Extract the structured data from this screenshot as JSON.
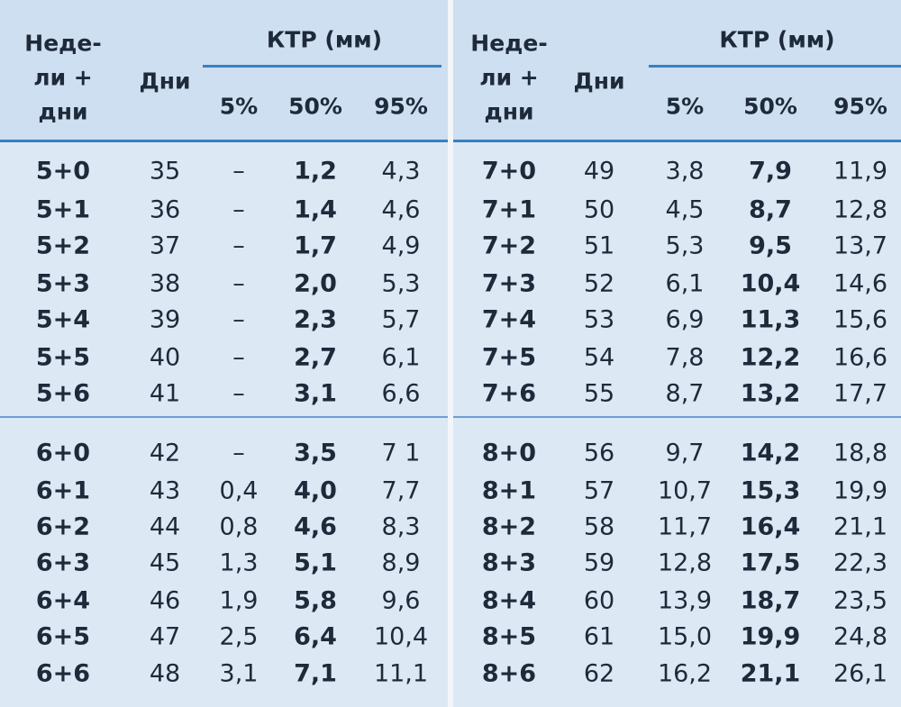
{
  "halves": [
    {
      "header": {
        "weeks": [
          "Неде-",
          "ли +",
          "дни"
        ],
        "days": "Дни",
        "ktr": "КТР (мм)",
        "percentiles": [
          "5%",
          "50%",
          "95%"
        ]
      },
      "groups": [
        [
          [
            "5+0",
            "35",
            "–",
            "1,2",
            "4,3"
          ],
          [
            "5+1",
            "36",
            "–",
            "1,4",
            "4,6"
          ],
          [
            "5+2",
            "37",
            "–",
            "1,7",
            "4,9"
          ],
          [
            "5+3",
            "38",
            "–",
            "2,0",
            "5,3"
          ],
          [
            "5+4",
            "39",
            "–",
            "2,3",
            "5,7"
          ],
          [
            "5+5",
            "40",
            "–",
            "2,7",
            "6,1"
          ],
          [
            "5+6",
            "41",
            "–",
            "3,1",
            "6,6"
          ]
        ],
        [
          [
            "6+0",
            "42",
            "–",
            "3,5",
            "7 1"
          ],
          [
            "6+1",
            "43",
            "0,4",
            "4,0",
            "7,7"
          ],
          [
            "6+2",
            "44",
            "0,8",
            "4,6",
            "8,3"
          ],
          [
            "6+3",
            "45",
            "1,3",
            "5,1",
            "8,9"
          ],
          [
            "6+4",
            "46",
            "1,9",
            "5,8",
            "9,6"
          ],
          [
            "6+5",
            "47",
            "2,5",
            "6,4",
            "10,4"
          ],
          [
            "6+6",
            "48",
            "3,1",
            "7,1",
            "11,1"
          ]
        ]
      ]
    },
    {
      "header": {
        "weeks": [
          "Неде-",
          "ли +",
          "дни"
        ],
        "days": "Дни",
        "ktr": "КТР (мм)",
        "percentiles": [
          "5%",
          "50%",
          "95%"
        ]
      },
      "groups": [
        [
          [
            "7+0",
            "49",
            "3,8",
            "7,9",
            "11,9"
          ],
          [
            "7+1",
            "50",
            "4,5",
            "8,7",
            "12,8"
          ],
          [
            "7+2",
            "51",
            "5,3",
            "9,5",
            "13,7"
          ],
          [
            "7+3",
            "52",
            "6,1",
            "10,4",
            "14,6"
          ],
          [
            "7+4",
            "53",
            "6,9",
            "11,3",
            "15,6"
          ],
          [
            "7+5",
            "54",
            "7,8",
            "12,2",
            "16,6"
          ],
          [
            "7+6",
            "55",
            "8,7",
            "13,2",
            "17,7"
          ]
        ],
        [
          [
            "8+0",
            "56",
            "9,7",
            "14,2",
            "18,8"
          ],
          [
            "8+1",
            "57",
            "10,7",
            "15,3",
            "19,9"
          ],
          [
            "8+2",
            "58",
            "11,7",
            "16,4",
            "21,1"
          ],
          [
            "8+3",
            "59",
            "12,8",
            "17,5",
            "22,3"
          ],
          [
            "8+4",
            "60",
            "13,9",
            "18,7",
            "23,5"
          ],
          [
            "8+5",
            "61",
            "15,0",
            "19,9",
            "24,8"
          ],
          [
            "8+6",
            "62",
            "16,2",
            "21,1",
            "26,1"
          ]
        ]
      ]
    }
  ]
}
